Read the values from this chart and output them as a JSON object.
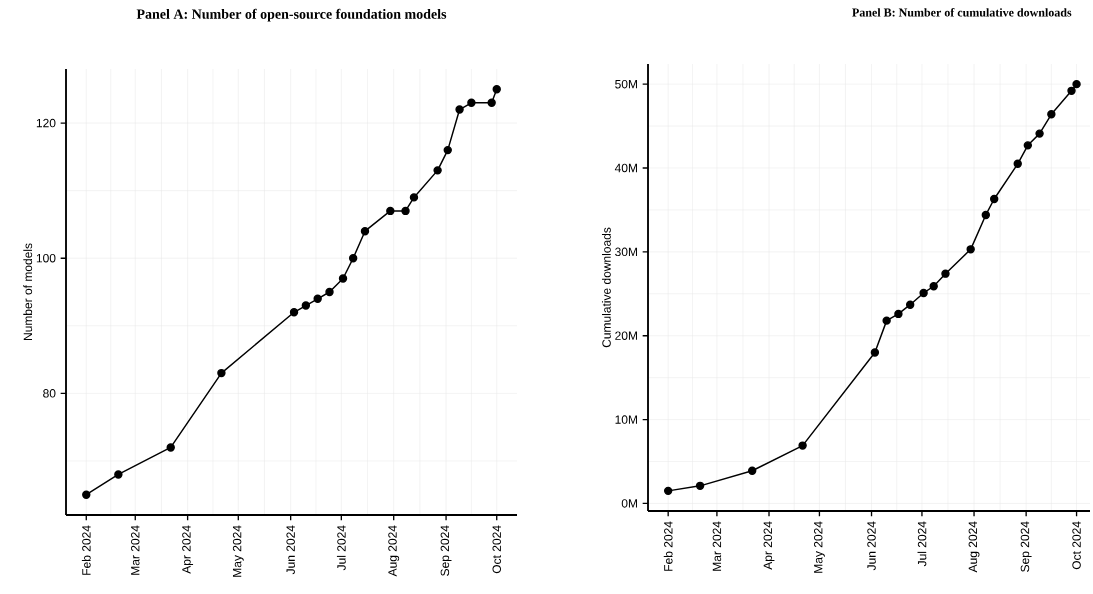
{
  "chart_data": [
    {
      "type": "line",
      "title": "Panel A: Number of open-source foundation models",
      "ylabel": "Number of models",
      "x": [
        "2024-02-01",
        "2024-02-20",
        "2024-03-22",
        "2024-04-21",
        "2024-06-03",
        "2024-06-10",
        "2024-06-17",
        "2024-06-24",
        "2024-07-02",
        "2024-07-08",
        "2024-07-15",
        "2024-07-30",
        "2024-08-08",
        "2024-08-13",
        "2024-08-27",
        "2024-09-02",
        "2024-09-09",
        "2024-09-16",
        "2024-09-28",
        "2024-10-01"
      ],
      "values": [
        65,
        68,
        72,
        83,
        92,
        93,
        94,
        95,
        97,
        100,
        104,
        107,
        107,
        109,
        113,
        116,
        122,
        123,
        123,
        125
      ],
      "color": "#000000",
      "xlim": [
        "2024-01-20",
        "2024-10-13"
      ],
      "ylim": [
        62,
        128
      ],
      "xticks": [
        {
          "value": "2024-02-01",
          "label": "Feb 2024"
        },
        {
          "value": "2024-03-01",
          "label": "Mar 2024"
        },
        {
          "value": "2024-04-01",
          "label": "Apr 2024"
        },
        {
          "value": "2024-05-01",
          "label": "May 2024"
        },
        {
          "value": "2024-06-01",
          "label": "Jun 2024"
        },
        {
          "value": "2024-07-01",
          "label": "Jul 2024"
        },
        {
          "value": "2024-08-01",
          "label": "Aug 2024"
        },
        {
          "value": "2024-09-01",
          "label": "Sep 2024"
        },
        {
          "value": "2024-10-01",
          "label": "Oct 2024"
        }
      ],
      "yticks": [
        80,
        100,
        120
      ],
      "grid": true,
      "marker": "circle",
      "line_style": "solid"
    },
    {
      "type": "line",
      "title": "Panel B: Number of cumulative downloads",
      "ylabel": "Cumulative downloads",
      "x": [
        "2024-02-01",
        "2024-02-20",
        "2024-03-22",
        "2024-04-21",
        "2024-06-03",
        "2024-06-10",
        "2024-06-17",
        "2024-06-24",
        "2024-07-02",
        "2024-07-08",
        "2024-07-15",
        "2024-07-30",
        "2024-08-08",
        "2024-08-13",
        "2024-08-27",
        "2024-09-02",
        "2024-09-09",
        "2024-09-16",
        "2024-09-28",
        "2024-10-01"
      ],
      "values": [
        1.5,
        2.1,
        3.9,
        6.9,
        18.0,
        21.8,
        22.6,
        23.7,
        25.1,
        25.9,
        27.4,
        30.3,
        34.4,
        36.3,
        40.5,
        42.7,
        44.1,
        46.4,
        49.2,
        50.0
      ],
      "color": "#000000",
      "xlim": [
        "2024-01-20",
        "2024-10-09"
      ],
      "ylim": [
        -0.9,
        52.4
      ],
      "xticks": [
        {
          "value": "2024-02-01",
          "label": "Feb 2024"
        },
        {
          "value": "2024-03-01",
          "label": "Mar 2024"
        },
        {
          "value": "2024-04-01",
          "label": "Apr 2024"
        },
        {
          "value": "2024-05-01",
          "label": "May 2024"
        },
        {
          "value": "2024-06-01",
          "label": "Jun 2024"
        },
        {
          "value": "2024-07-01",
          "label": "Jul 2024"
        },
        {
          "value": "2024-08-01",
          "label": "Aug 2024"
        },
        {
          "value": "2024-09-01",
          "label": "Sep 2024"
        },
        {
          "value": "2024-10-01",
          "label": "Oct 2024"
        }
      ],
      "yticks": [
        {
          "value": 0,
          "label": "0M"
        },
        {
          "value": 10,
          "label": "10M"
        },
        {
          "value": 20,
          "label": "20M"
        },
        {
          "value": 30,
          "label": "30M"
        },
        {
          "value": 40,
          "label": "40M"
        },
        {
          "value": 50,
          "label": "50M"
        }
      ],
      "grid": true,
      "marker": "circle",
      "line_style": "solid"
    }
  ]
}
